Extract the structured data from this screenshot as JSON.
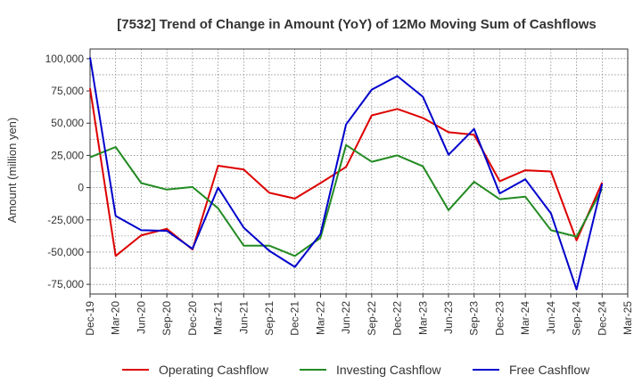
{
  "chart_data": {
    "type": "line",
    "title": "[7532]  Trend of Change in Amount (YoY) of 12Mo Moving Sum of Cashflows",
    "xlabel": "",
    "ylabel": "Amount (million yen)",
    "ylim": [
      -82500,
      107500
    ],
    "yticks": [
      -75000,
      -50000,
      -25000,
      0,
      25000,
      50000,
      75000,
      100000
    ],
    "ytick_labels": [
      "-75,000",
      "-50,000",
      "-25,000",
      "0",
      "25,000",
      "50,000",
      "75,000",
      "100,000"
    ],
    "grid": true,
    "legend_position": "bottom",
    "categories": [
      "Dec-19",
      "Mar-20",
      "Jun-20",
      "Sep-20",
      "Dec-20",
      "Mar-21",
      "Jun-21",
      "Sep-21",
      "Dec-21",
      "Mar-22",
      "Jun-22",
      "Sep-22",
      "Dec-22",
      "Mar-23",
      "Jun-23",
      "Sep-23",
      "Dec-23",
      "Mar-24",
      "Jun-24",
      "Sep-24",
      "Dec-24",
      "Mar-25"
    ],
    "series": [
      {
        "name": "Operating Cashflow",
        "color": "#dd0000",
        "values": [
          77000,
          -53000,
          -37000,
          -32000,
          -48000,
          17000,
          14000,
          -4000,
          -8500,
          3500,
          16000,
          56000,
          61000,
          54000,
          43000,
          41000,
          5000,
          13500,
          12500,
          -41000,
          4000,
          null
        ]
      },
      {
        "name": "Investing Cashflow",
        "color": "#228b22",
        "values": [
          23500,
          31500,
          3500,
          -1500,
          500,
          -16000,
          -45000,
          -45000,
          -53000,
          -39000,
          33000,
          20000,
          25000,
          16500,
          -17500,
          4500,
          -9000,
          -7000,
          -33000,
          -38000,
          -1000,
          null
        ]
      },
      {
        "name": "Free Cashflow",
        "color": "#0000cc",
        "values": [
          101000,
          -22000,
          -33000,
          -33500,
          -47500,
          0,
          -31000,
          -49000,
          -61500,
          -36000,
          49000,
          76000,
          86500,
          70500,
          25500,
          45500,
          -4500,
          6500,
          -20000,
          -79000,
          3000,
          null
        ]
      }
    ]
  }
}
